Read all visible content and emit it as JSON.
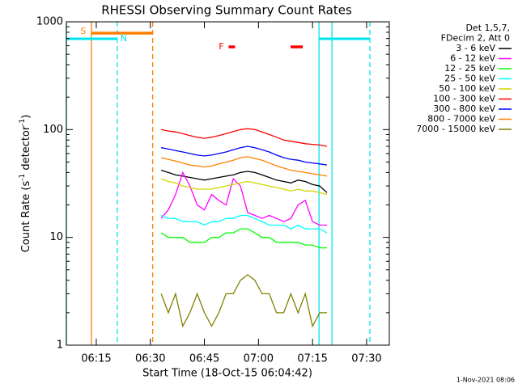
{
  "chart_data": {
    "type": "line",
    "title": "RHESSI Observing Summary Count Rates",
    "x_label": "Start Time (18-Oct-15 06:04:42)",
    "y_label": [
      "Count Rate (s",
      "-1",
      " detector",
      "-1",
      ")"
    ],
    "log_y": true,
    "xlim": [
      6.7,
      96.3
    ],
    "ylim": [
      1,
      1000
    ],
    "xticks": [
      {
        "value": 15,
        "label": "06:15"
      },
      {
        "value": 30,
        "label": "06:30"
      },
      {
        "value": 45,
        "label": "06:45"
      },
      {
        "value": 60,
        "label": "07:00"
      },
      {
        "value": 75,
        "label": "07:15"
      },
      {
        "value": 90,
        "label": "07:30"
      }
    ],
    "yticks": [
      1,
      10,
      100,
      1000
    ],
    "legend_header": [
      "Det 1,5,7,",
      "FDecim 2, Att 0"
    ],
    "footer": "1-Nov-2021 08:06",
    "x": [
      33,
      35,
      37,
      39,
      41,
      43,
      45,
      47,
      49,
      51,
      53,
      55,
      57,
      59,
      61,
      63,
      65,
      67,
      69,
      71,
      73,
      75,
      77,
      79
    ],
    "series": [
      {
        "name": "3 - 6 keV",
        "color": "#000000",
        "values": [
          42,
          40,
          38,
          37,
          36,
          35,
          34,
          35,
          36,
          37,
          38,
          40,
          41,
          40,
          38,
          36,
          34,
          33,
          32,
          34,
          33,
          31,
          30,
          26
        ]
      },
      {
        "name": "6 - 12 keV",
        "color": "#ff00ff",
        "values": [
          15,
          18,
          25,
          40,
          30,
          20,
          18,
          25,
          22,
          20,
          35,
          30,
          17,
          16,
          15,
          16,
          15,
          14,
          15,
          20,
          22,
          14,
          13,
          13
        ]
      },
      {
        "name": "12 - 25 keV",
        "color": "#00ff00",
        "values": [
          11,
          10,
          10,
          10,
          9,
          9,
          9,
          10,
          10,
          11,
          11,
          12,
          12,
          11,
          10,
          10,
          9,
          9,
          9,
          9,
          8.5,
          8.5,
          8,
          8
        ]
      },
      {
        "name": "25 - 50 keV",
        "color": "#00ffff",
        "values": [
          16,
          15,
          15,
          14,
          14,
          14,
          13,
          14,
          14,
          15,
          15,
          16,
          16,
          15,
          14,
          13,
          13,
          13,
          12,
          13,
          12,
          12,
          12,
          11
        ]
      },
      {
        "name": "50 - 100 keV",
        "color": "#d4d400",
        "values": [
          35,
          33,
          32,
          30,
          29,
          28,
          28,
          28,
          29,
          30,
          31,
          32,
          33,
          32,
          31,
          30,
          29,
          28,
          27,
          28,
          27,
          27,
          26,
          25
        ]
      },
      {
        "name": "100 - 300 keV",
        "color": "#ff0000",
        "values": [
          100,
          97,
          95,
          92,
          88,
          85,
          83,
          85,
          88,
          92,
          96,
          100,
          102,
          100,
          95,
          90,
          85,
          80,
          78,
          76,
          74,
          73,
          72,
          70
        ]
      },
      {
        "name": "300 - 800 keV",
        "color": "#0000ff",
        "values": [
          68,
          66,
          64,
          62,
          60,
          58,
          57,
          58,
          60,
          62,
          65,
          68,
          70,
          68,
          65,
          62,
          58,
          55,
          53,
          52,
          50,
          49,
          48,
          47
        ]
      },
      {
        "name": "800 - 7000 keV",
        "color": "#ff8000",
        "values": [
          55,
          53,
          51,
          49,
          47,
          46,
          45,
          46,
          48,
          50,
          52,
          55,
          56,
          54,
          52,
          49,
          46,
          44,
          42,
          41,
          40,
          39,
          38,
          37
        ]
      },
      {
        "name": "7000 - 15000 keV",
        "color": "#808000",
        "values": [
          3,
          2,
          3,
          1.5,
          2,
          3,
          2,
          1.5,
          2,
          3,
          3,
          4,
          4.5,
          4,
          3,
          3,
          2,
          2,
          3,
          2,
          3,
          1.5,
          2,
          2
        ]
      }
    ],
    "flags": [
      {
        "name": "S",
        "color": "#ff8000",
        "intervals": [
          [
            13.64,
            30.65
          ]
        ]
      },
      {
        "name": "N",
        "color": "#00e5ee",
        "intervals": [
          [
            6.7,
            20.8
          ],
          [
            76.8,
            90.9
          ]
        ]
      },
      {
        "name": "F",
        "color": "#ff0000",
        "intervals": [
          [
            51.7,
            53.5
          ],
          [
            68.9,
            72.3
          ]
        ]
      }
    ],
    "vlines": [
      {
        "x": 6.7,
        "color": "#00e5ee",
        "dashed": false
      },
      {
        "x": 13.64,
        "color": "#ff8000",
        "dashed": false
      },
      {
        "x": 20.8,
        "color": "#00e5ee",
        "dashed": true
      },
      {
        "x": 30.65,
        "color": "#ff8000",
        "dashed": true
      },
      {
        "x": 76.8,
        "color": "#00e5ee",
        "dashed": false
      },
      {
        "x": 80.4,
        "color": "#00e5ee",
        "dashed": false
      },
      {
        "x": 90.9,
        "color": "#00e5ee",
        "dashed": true
      }
    ]
  }
}
